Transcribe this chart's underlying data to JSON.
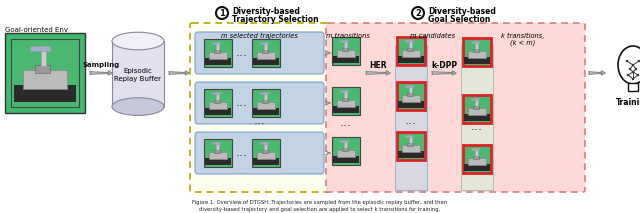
{
  "fig_width": 6.4,
  "fig_height": 2.13,
  "dpi": 100,
  "bg_color": "#ffffff",
  "step1_label_line1": "Diversity-based",
  "step1_label_line2": "Trajectory Selection",
  "step2_label_line1": "Diversity-based",
  "step2_label_line2": "Goal Selection",
  "env_label": "Goal-oriented Env",
  "buffer_label_line1": "Episodic",
  "buffer_label_line2": "Replay Buffer",
  "sampling_label": "Sampling",
  "m_traj_label": "m selected trajectories",
  "m_trans_label": "m transitions",
  "m_cand_label": "m candidates",
  "k_trans_label1": "k transitions,",
  "k_trans_label2": "(k < m)",
  "training_label": "Training",
  "her_label": "HER",
  "kdpp_label": "k-DPP",
  "green_env": "#3dba6e",
  "yellow_box": "#fffff0",
  "yellow_border": "#b8a800",
  "pink_box": "#ffd8d8",
  "pink_border": "#d08080",
  "blue_row_box": "#b8cce4",
  "blue_row_border": "#6699cc",
  "green_col_box": "#d8efd8",
  "green_col_border": "#88bb88",
  "robot_green_bg": "#4ab86e",
  "robot_dark_bg": "#3a9a5c",
  "red_border_color": "#dd2222",
  "arrow_color": "#555555",
  "dashed_color": "#888888",
  "text_color": "#111111",
  "cyl_body": "#e0e0ee",
  "cyl_top": "#f0f0f8",
  "cyl_border": "#888899"
}
